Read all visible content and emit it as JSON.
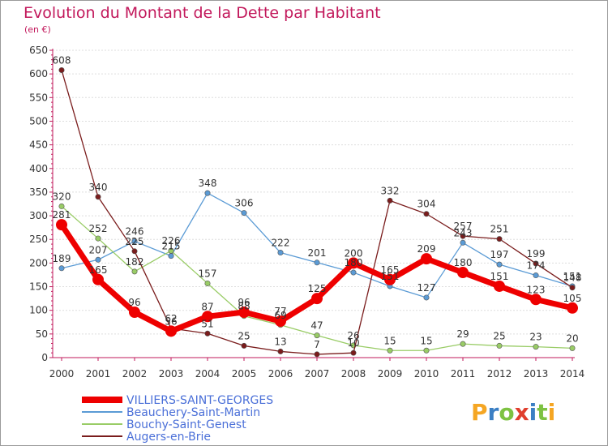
{
  "header": {
    "title": "Evolution du Montant de la Dette par Habitant",
    "unit": "(en €)"
  },
  "logo": {
    "text": "Proxiti",
    "colors": [
      "#f5a623",
      "#3b7fc4",
      "#7dc242",
      "#e03e2d",
      "#3b7fc4",
      "#7dc242",
      "#f5a623"
    ]
  },
  "chart_data": {
    "type": "line",
    "title": "Evolution du Montant de la Dette par Habitant",
    "ylabel": "(en €)",
    "xlabel": "",
    "ylim": [
      0,
      650
    ],
    "yticks": [
      0,
      50,
      100,
      150,
      200,
      250,
      300,
      350,
      400,
      450,
      500,
      550,
      600,
      650
    ],
    "categories": [
      "2000",
      "2001",
      "2002",
      "2003",
      "2004",
      "2005",
      "2006",
      "2007",
      "2008",
      "2009",
      "2010",
      "2011",
      "2012",
      "2013",
      "2014"
    ],
    "grid": true,
    "legend": "bottom-left",
    "series": [
      {
        "name": "VILLIERS-SAINT-GEORGES",
        "color": "#ee0000",
        "emphasis": true,
        "values": [
          281,
          165,
          96,
          56,
          87,
          96,
          77,
          125,
          200,
          165,
          209,
          180,
          151,
          123,
          105
        ]
      },
      {
        "name": "Beauchery-Saint-Martin",
        "color": "#5b9bd5",
        "emphasis": false,
        "values": [
          189,
          207,
          246,
          215,
          348,
          306,
          222,
          201,
          180,
          151,
          127,
          243,
          197,
          174,
          151
        ]
      },
      {
        "name": "Bouchy-Saint-Genest",
        "color": "#99cc66",
        "emphasis": false,
        "values": [
          320,
          252,
          182,
          226,
          157,
          88,
          69,
          47,
          26,
          15,
          15,
          29,
          25,
          23,
          20
        ]
      },
      {
        "name": "Augers-en-Brie",
        "color": "#7a1c1c",
        "emphasis": false,
        "values": [
          608,
          340,
          225,
          62,
          51,
          25,
          13,
          7,
          10,
          332,
          304,
          257,
          251,
          199,
          148
        ]
      }
    ]
  }
}
